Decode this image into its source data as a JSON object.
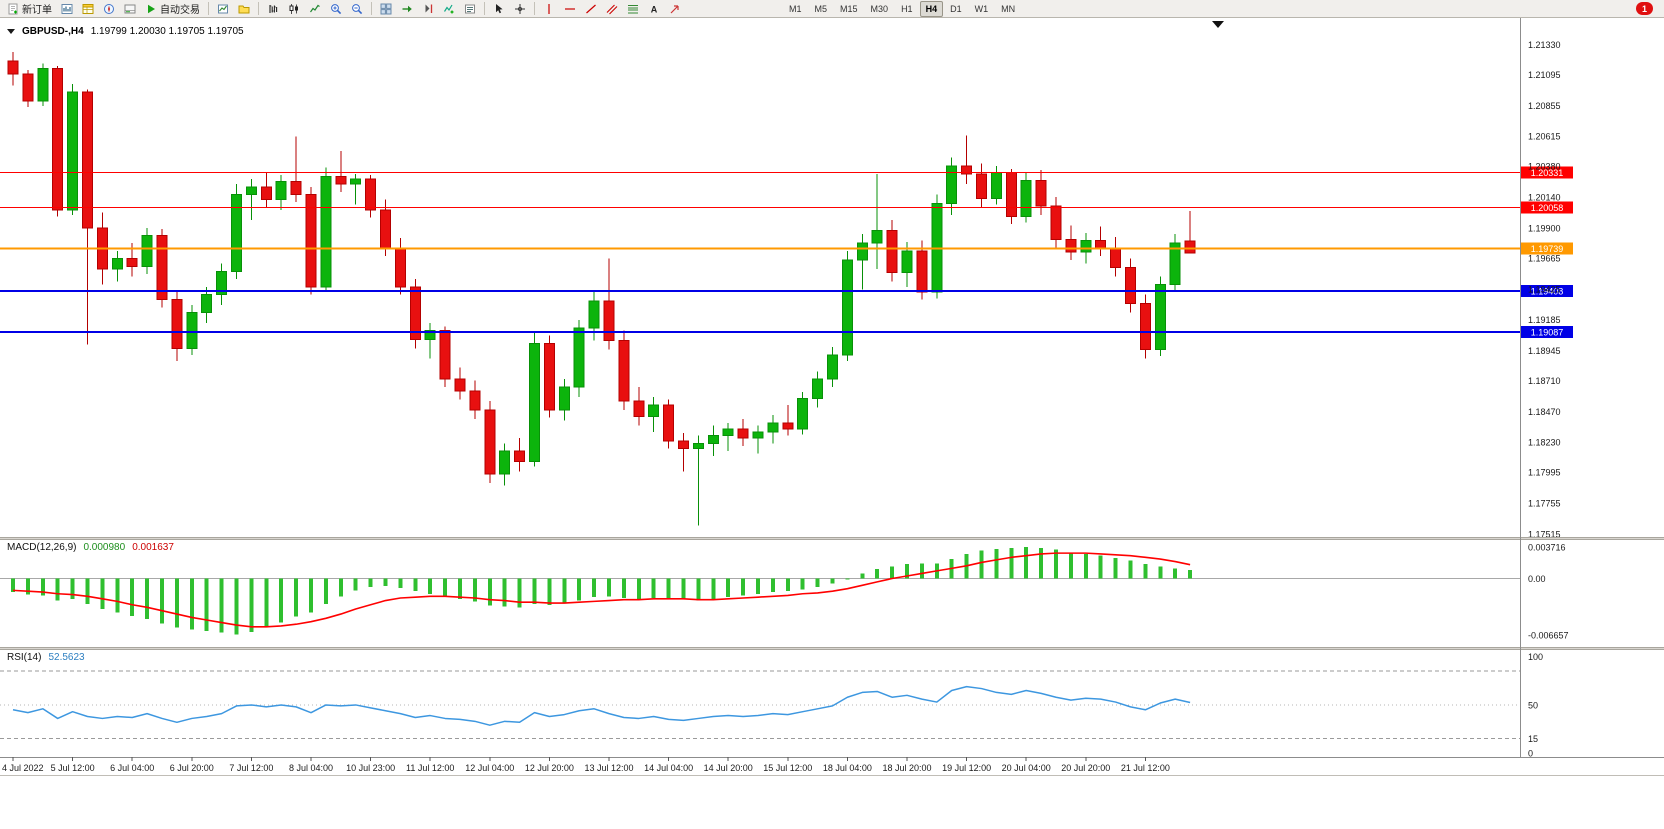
{
  "toolbar": {
    "new_order": {
      "label": "新订单"
    },
    "autotrading": {
      "label": "自动交易"
    },
    "timeframes": [
      "M1",
      "M5",
      "M15",
      "M30",
      "H1",
      "H4",
      "D1",
      "W1",
      "MN"
    ],
    "active_timeframe": "H4",
    "notification_badge": "1",
    "items": [
      {
        "t": "btn",
        "name": "new-order",
        "icon": "new-order",
        "label_key": "new_order"
      },
      {
        "t": "ic",
        "name": "charts"
      },
      {
        "t": "ic",
        "name": "market-watch"
      },
      {
        "t": "ic",
        "name": "navigator"
      },
      {
        "t": "ic",
        "name": "terminal"
      },
      {
        "t": "btn",
        "name": "autotrading",
        "icon": "play",
        "label_key": "autotrading"
      },
      {
        "t": "sep"
      },
      {
        "t": "ic",
        "name": "new-chart"
      },
      {
        "t": "ic",
        "name": "profiles"
      },
      {
        "t": "sep"
      },
      {
        "t": "ic",
        "name": "bar-chart"
      },
      {
        "t": "ic",
        "name": "candlestick"
      },
      {
        "t": "ic",
        "name": "line-chart"
      },
      {
        "t": "ic",
        "name": "zoom-in"
      },
      {
        "t": "ic",
        "name": "zoom-out"
      },
      {
        "t": "sep"
      },
      {
        "t": "ic",
        "name": "tile-windows"
      },
      {
        "t": "ic",
        "name": "auto-scroll"
      },
      {
        "t": "ic",
        "name": "chart-shift"
      },
      {
        "t": "ic",
        "name": "indicators"
      },
      {
        "t": "ic",
        "name": "objects-list"
      },
      {
        "t": "sep"
      },
      {
        "t": "ic",
        "name": "cursor"
      },
      {
        "t": "ic",
        "name": "crosshair"
      },
      {
        "t": "sep"
      },
      {
        "t": "ic",
        "name": "vertical-line"
      },
      {
        "t": "ic",
        "name": "horizontal-line"
      },
      {
        "t": "ic",
        "name": "trendline"
      },
      {
        "t": "ic",
        "name": "equidistant-channel"
      },
      {
        "t": "ic",
        "name": "fibonacci"
      },
      {
        "t": "ic",
        "name": "text-label"
      },
      {
        "t": "ic",
        "name": "arrow-tool"
      },
      {
        "t": "spacer",
        "w": 96
      },
      {
        "t": "tf"
      },
      {
        "t": "badge",
        "name": "notifications"
      }
    ]
  },
  "chart": {
    "title": "GBPUSD-,H4",
    "ohlc_text": "1.19799 1.20030 1.19705 1.19705",
    "price_ticks": [
      "1.21330",
      "1.21095",
      "1.20855",
      "1.20615",
      "1.20380",
      "1.20140",
      "1.19900",
      "1.19665",
      "1.19425",
      "1.19185",
      "1.18945",
      "1.18710",
      "1.18470",
      "1.18230",
      "1.17995",
      "1.17755",
      "1.17515"
    ],
    "levels": [
      {
        "price": 1.20331,
        "label": "1.20331",
        "color": "#FF0000",
        "width": 1
      },
      {
        "price": 1.20058,
        "label": "1.20058",
        "color": "#FF0000",
        "width": 1
      },
      {
        "price": 1.19739,
        "label": "1.19739",
        "color": "#FF9900",
        "width": 2
      },
      {
        "price": 1.19408,
        "label": "1.19408",
        "color": "#0000E6",
        "width": 2
      },
      {
        "price": 1.19087,
        "label": "1.19087",
        "color": "#0000E6",
        "width": 2
      }
    ],
    "colors": {
      "up": "#0CB40C",
      "down": "#E81010",
      "up_edge": "#089008",
      "down_edge": "#B40000",
      "macd_hist": "#2FBF2F",
      "macd_signal": "#FF0000",
      "rsi": "#3D97E0"
    }
  },
  "macd_panel": {
    "name": "MACD(12,26,9)",
    "value_main": "0.000980",
    "value_signal": "0.001637",
    "axis_ticks": [
      {
        "v": 0.003716,
        "label": "0.003716"
      },
      {
        "v": 0,
        "label": "0.00"
      },
      {
        "v": -0.006657,
        "label": "-0.006657"
      }
    ]
  },
  "rsi_panel": {
    "name": "RSI(14)",
    "value": "52.5623",
    "axis_ticks": [
      {
        "v": 100,
        "label": "100"
      },
      {
        "v": 50,
        "label": "50"
      },
      {
        "v": 15,
        "label": "15"
      },
      {
        "v": 0,
        "label": "0"
      }
    ],
    "levels_dashed": [
      85,
      15
    ],
    "levels_dotted": [
      50
    ]
  },
  "chart_data": {
    "type": "candlestick",
    "symbol": "GBPUSD-",
    "timeframe": "H4",
    "current_bar": {
      "open": 1.19799,
      "high": 1.2003,
      "low": 1.19705,
      "close": 1.19705
    },
    "ylim": [
      1.1749,
      1.2152
    ],
    "label_every_n_candles": 4,
    "x_labels": [
      "4 Jul 2022",
      "5 Jul 12:00",
      "6 Jul 04:00",
      "6 Jul 20:00",
      "7 Jul 12:00",
      "8 Jul 04:00",
      "10 Jul 23:00",
      "11 Jul 12:00",
      "12 Jul 04:00",
      "12 Jul 20:00",
      "13 Jul 12:00",
      "14 Jul 04:00",
      "14 Jul 20:00",
      "15 Jul 12:00",
      "18 Jul 04:00",
      "18 Jul 20:00",
      "19 Jul 12:00",
      "20 Jul 04:00",
      "20 Jul 20:00",
      "21 Jul 12:00"
    ],
    "candles": [
      [
        1.212,
        1.2127,
        1.2101,
        1.211
      ],
      [
        1.211,
        1.2113,
        1.2084,
        1.2089
      ],
      [
        1.2089,
        1.2118,
        1.2085,
        1.2114
      ],
      [
        1.2114,
        1.2116,
        1.1999,
        1.2004
      ],
      [
        1.2004,
        1.2102,
        1.2,
        1.2096
      ],
      [
        1.2096,
        1.2098,
        1.1899,
        1.199
      ],
      [
        1.199,
        1.2002,
        1.1946,
        1.1958
      ],
      [
        1.1958,
        1.1972,
        1.1948,
        1.1966
      ],
      [
        1.1966,
        1.1978,
        1.1952,
        1.196
      ],
      [
        1.196,
        1.199,
        1.1954,
        1.1984
      ],
      [
        1.1984,
        1.1989,
        1.1928,
        1.1934
      ],
      [
        1.1934,
        1.194,
        1.1886,
        1.1896
      ],
      [
        1.1896,
        1.193,
        1.1891,
        1.1924
      ],
      [
        1.1924,
        1.1944,
        1.1916,
        1.1938
      ],
      [
        1.1938,
        1.1962,
        1.193,
        1.1956
      ],
      [
        1.1956,
        1.2024,
        1.195,
        1.2016
      ],
      [
        1.2016,
        1.2028,
        1.1996,
        1.2022
      ],
      [
        1.2022,
        1.2033,
        1.2006,
        1.2012
      ],
      [
        1.2012,
        1.2031,
        1.2004,
        1.2026
      ],
      [
        1.2026,
        1.2061,
        1.201,
        1.2016
      ],
      [
        1.2016,
        1.2022,
        1.1938,
        1.1944
      ],
      [
        1.1944,
        1.2037,
        1.194,
        1.203
      ],
      [
        1.203,
        1.205,
        1.2018,
        1.2024
      ],
      [
        1.2024,
        1.2032,
        1.2008,
        1.2028
      ],
      [
        1.2028,
        1.2031,
        1.1998,
        1.2004
      ],
      [
        1.2004,
        1.2012,
        1.1968,
        1.1974
      ],
      [
        1.1974,
        1.1982,
        1.1938,
        1.1944
      ],
      [
        1.1944,
        1.195,
        1.1896,
        1.1903
      ],
      [
        1.1903,
        1.1916,
        1.1888,
        1.191
      ],
      [
        1.191,
        1.1913,
        1.1866,
        1.1872
      ],
      [
        1.1872,
        1.1881,
        1.1856,
        1.1863
      ],
      [
        1.1863,
        1.1871,
        1.1841,
        1.1848
      ],
      [
        1.1848,
        1.1855,
        1.1791,
        1.1798
      ],
      [
        1.1798,
        1.1822,
        1.1789,
        1.1816
      ],
      [
        1.1816,
        1.1826,
        1.18,
        1.1808
      ],
      [
        1.1808,
        1.1908,
        1.1804,
        1.19
      ],
      [
        1.19,
        1.1906,
        1.1842,
        1.1848
      ],
      [
        1.1848,
        1.1872,
        1.184,
        1.1866
      ],
      [
        1.1866,
        1.1918,
        1.1858,
        1.1912
      ],
      [
        1.1912,
        1.194,
        1.1902,
        1.1933
      ],
      [
        1.1933,
        1.1966,
        1.1895,
        1.1902
      ],
      [
        1.1902,
        1.191,
        1.1848,
        1.1855
      ],
      [
        1.1855,
        1.1866,
        1.1836,
        1.1843
      ],
      [
        1.1843,
        1.1858,
        1.1831,
        1.1852
      ],
      [
        1.1852,
        1.1856,
        1.1818,
        1.1824
      ],
      [
        1.1824,
        1.183,
        1.18,
        1.1818
      ],
      [
        1.1818,
        1.1828,
        1.1758,
        1.1822
      ],
      [
        1.1822,
        1.1836,
        1.1812,
        1.1828
      ],
      [
        1.1828,
        1.1838,
        1.1816,
        1.1833
      ],
      [
        1.1833,
        1.1841,
        1.182,
        1.1826
      ],
      [
        1.1826,
        1.1836,
        1.1814,
        1.1831
      ],
      [
        1.1831,
        1.1844,
        1.1822,
        1.1838
      ],
      [
        1.1838,
        1.1852,
        1.1828,
        1.1833
      ],
      [
        1.1833,
        1.1862,
        1.1829,
        1.1857
      ],
      [
        1.1857,
        1.1878,
        1.185,
        1.1872
      ],
      [
        1.1872,
        1.1897,
        1.1866,
        1.1891
      ],
      [
        1.1891,
        1.1972,
        1.1886,
        1.1965
      ],
      [
        1.1965,
        1.1985,
        1.1942,
        1.1978
      ],
      [
        1.1978,
        1.2032,
        1.1958,
        1.1988
      ],
      [
        1.1988,
        1.1996,
        1.1948,
        1.1955
      ],
      [
        1.1955,
        1.1979,
        1.1944,
        1.1972
      ],
      [
        1.1972,
        1.198,
        1.1934,
        1.194
      ],
      [
        1.194,
        1.2016,
        1.1935,
        1.2009
      ],
      [
        1.2009,
        1.2045,
        1.2,
        1.2038
      ],
      [
        1.2038,
        1.2062,
        1.2024,
        1.2032
      ],
      [
        1.2032,
        1.204,
        1.2006,
        1.2013
      ],
      [
        1.2013,
        1.2038,
        1.2008,
        1.2033
      ],
      [
        1.2033,
        1.2036,
        1.1993,
        1.1999
      ],
      [
        1.1999,
        1.2033,
        1.1994,
        1.2027
      ],
      [
        1.2027,
        1.2035,
        1.2,
        1.2007
      ],
      [
        1.2007,
        1.2014,
        1.1974,
        1.1981
      ],
      [
        1.1981,
        1.1992,
        1.1965,
        1.1971
      ],
      [
        1.1971,
        1.1986,
        1.1962,
        1.198
      ],
      [
        1.198,
        1.1991,
        1.1968,
        1.1974
      ],
      [
        1.1974,
        1.1983,
        1.1952,
        1.1959
      ],
      [
        1.1959,
        1.1966,
        1.1924,
        1.1931
      ],
      [
        1.1931,
        1.1938,
        1.1888,
        1.1895
      ],
      [
        1.1895,
        1.1952,
        1.189,
        1.1946
      ],
      [
        1.1946,
        1.1985,
        1.194,
        1.1978
      ],
      [
        1.19799,
        1.2003,
        1.19705,
        1.19705
      ]
    ],
    "indicators": [
      {
        "type": "bar",
        "name": "MACD(12,26,9)",
        "ylim": [
          -0.00809,
          0.00455
        ],
        "values": [
          -0.0016,
          -0.0019,
          -0.002,
          -0.0026,
          -0.0024,
          -0.003,
          -0.0036,
          -0.004,
          -0.0044,
          -0.0048,
          -0.0053,
          -0.0058,
          -0.006,
          -0.0062,
          -0.0064,
          -0.0066,
          -0.0063,
          -0.0058,
          -0.0052,
          -0.0045,
          -0.004,
          -0.003,
          -0.0021,
          -0.0014,
          -0.001,
          -0.0009,
          -0.0011,
          -0.0015,
          -0.0018,
          -0.0021,
          -0.0024,
          -0.0027,
          -0.0032,
          -0.0033,
          -0.0034,
          -0.003,
          -0.0031,
          -0.0029,
          -0.0026,
          -0.0022,
          -0.0021,
          -0.0023,
          -0.0024,
          -0.0023,
          -0.0024,
          -0.0025,
          -0.0026,
          -0.0024,
          -0.0022,
          -0.002,
          -0.0018,
          -0.0016,
          -0.0015,
          -0.0013,
          -0.001,
          -0.0006,
          0.0,
          0.0006,
          0.0011,
          0.0014,
          0.0017,
          0.0018,
          0.0018,
          0.0023,
          0.0029,
          0.0033,
          0.0035,
          0.0036,
          0.0037,
          0.0036,
          0.0034,
          0.0031,
          0.0029,
          0.0027,
          0.0024,
          0.0021,
          0.0017,
          0.0014,
          0.0012,
          0.00098
        ],
        "signal": [
          -0.0014,
          -0.0015,
          -0.0016,
          -0.0018,
          -0.0019,
          -0.0021,
          -0.0024,
          -0.0027,
          -0.0031,
          -0.0034,
          -0.0038,
          -0.0042,
          -0.0046,
          -0.0049,
          -0.0052,
          -0.0055,
          -0.0057,
          -0.0057,
          -0.0056,
          -0.0054,
          -0.0051,
          -0.0047,
          -0.0042,
          -0.0036,
          -0.0031,
          -0.0026,
          -0.0023,
          -0.0022,
          -0.0021,
          -0.0021,
          -0.0022,
          -0.0023,
          -0.0025,
          -0.0026,
          -0.0028,
          -0.0028,
          -0.0029,
          -0.0029,
          -0.0028,
          -0.0027,
          -0.0026,
          -0.0025,
          -0.0025,
          -0.0024,
          -0.0024,
          -0.0024,
          -0.0025,
          -0.0025,
          -0.0024,
          -0.0023,
          -0.0022,
          -0.0021,
          -0.002,
          -0.0018,
          -0.0017,
          -0.0015,
          -0.0012,
          -0.0008,
          -0.0004,
          0.0,
          0.0003,
          0.0006,
          0.0009,
          0.0012,
          0.0015,
          0.0019,
          0.0022,
          0.0025,
          0.0027,
          0.0029,
          0.003,
          0.003,
          0.003,
          0.0029,
          0.0028,
          0.0027,
          0.0025,
          0.0023,
          0.002,
          0.001637
        ],
        "current": [
          0.00098,
          0.001637
        ]
      },
      {
        "type": "line",
        "name": "RSI(14)",
        "ylim": [
          -4,
          107
        ],
        "values": [
          45,
          42,
          46,
          36,
          43,
          38,
          36,
          38,
          37,
          41,
          36,
          32,
          36,
          38,
          41,
          49,
          50,
          48,
          50,
          48,
          42,
          50,
          49,
          50,
          47,
          44,
          41,
          37,
          39,
          36,
          35,
          33,
          29,
          33,
          32,
          42,
          38,
          40,
          44,
          46,
          41,
          37,
          36,
          38,
          35,
          34,
          36,
          38,
          39,
          38,
          39,
          41,
          40,
          43,
          46,
          49,
          58,
          63,
          64,
          58,
          60,
          56,
          53,
          65,
          69,
          67,
          63,
          61,
          65,
          62,
          58,
          55,
          57,
          56,
          53,
          48,
          45,
          52,
          56,
          52.5623
        ],
        "current": 52.5623
      }
    ]
  }
}
